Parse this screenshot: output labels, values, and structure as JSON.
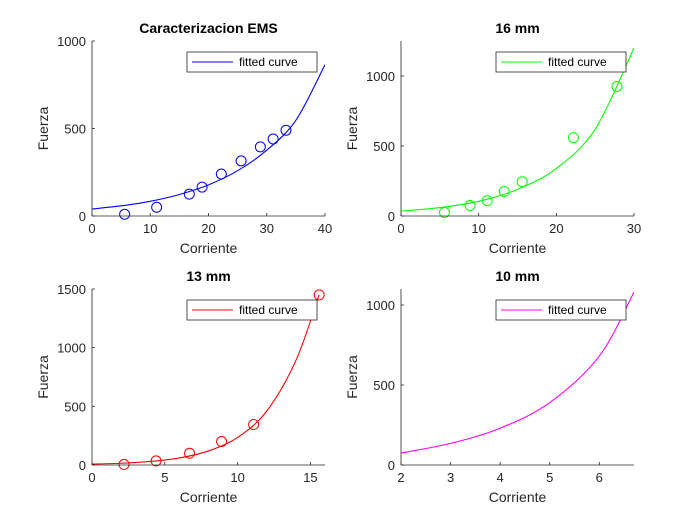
{
  "chart_data": [
    {
      "type": "scatter",
      "title": "Caracterizacion EMS",
      "xlabel": "Corriente",
      "ylabel": "Fuerza",
      "xlim": [
        0,
        40
      ],
      "ylim": [
        0,
        1000
      ],
      "xticks": [
        "0",
        "10",
        "20",
        "30",
        "40"
      ],
      "yticks": [
        "0",
        "500",
        "1000"
      ],
      "color": "#0000ff",
      "legend": {
        "label": "fitted curve",
        "placement": "top-right"
      },
      "points": {
        "x": [
          5.6,
          11.1,
          16.7,
          18.9,
          22.2,
          25.6,
          28.9,
          31.1,
          33.3
        ],
        "y": [
          10,
          50,
          125,
          165,
          240,
          315,
          395,
          440,
          490
        ]
      },
      "fit": {
        "x": [
          0,
          5,
          10,
          15,
          20,
          25,
          30,
          35,
          40
        ],
        "y": [
          40,
          58,
          84,
          123,
          178,
          259,
          376,
          547,
          865
        ]
      }
    },
    {
      "type": "scatter",
      "title": "16 mm",
      "xlabel": "Corriente",
      "ylabel": "Fuerza",
      "xlim": [
        0,
        30
      ],
      "ylim": [
        0,
        1250
      ],
      "xticks": [
        "0",
        "10",
        "20",
        "30"
      ],
      "yticks": [
        "0",
        "500",
        "1000"
      ],
      "color": "#00ff00",
      "legend": {
        "label": "fitted curve",
        "placement": "top-right"
      },
      "points": {
        "x": [
          5.6,
          8.9,
          11.1,
          13.3,
          15.6,
          22.2,
          27.8
        ],
        "y": [
          25,
          75,
          110,
          175,
          245,
          560,
          925
        ]
      },
      "fit": {
        "x": [
          0,
          5,
          10,
          15,
          20,
          25,
          30
        ],
        "y": [
          35,
          60,
          105,
          190,
          340,
          620,
          1200
        ]
      }
    },
    {
      "type": "scatter",
      "title": "13 mm",
      "xlabel": "Corriente",
      "ylabel": "Fuerza",
      "xlim": [
        0,
        16
      ],
      "ylim": [
        0,
        1500
      ],
      "xticks": [
        "0",
        "5",
        "10",
        "15"
      ],
      "yticks": [
        "0",
        "500",
        "1000",
        "1500"
      ],
      "color": "#ff0000",
      "legend": {
        "label": "fitted curve",
        "placement": "top-right"
      },
      "points": {
        "x": [
          2.2,
          4.4,
          6.7,
          8.9,
          11.1,
          15.6
        ],
        "y": [
          5,
          35,
          100,
          200,
          345,
          1450
        ]
      },
      "fit": {
        "x": [
          0,
          2,
          4,
          6,
          8,
          10,
          12,
          14,
          15.6
        ],
        "y": [
          8,
          15,
          30,
          60,
          120,
          235,
          460,
          890,
          1450
        ]
      }
    },
    {
      "type": "line",
      "title": "10 mm",
      "xlabel": "Corriente",
      "ylabel": "Fuerza",
      "xlim": [
        2,
        6.7
      ],
      "ylim": [
        0,
        1100
      ],
      "xticks": [
        "2",
        "3",
        "4",
        "5",
        "6"
      ],
      "yticks": [
        "0",
        "500",
        "1000"
      ],
      "color": "#ff00ff",
      "legend": {
        "label": "fitted curve",
        "placement": "top-right"
      },
      "points": {
        "x": [],
        "y": []
      },
      "fit": {
        "x": [
          2,
          3,
          4,
          5,
          6,
          6.7
        ],
        "y": [
          75,
          135,
          230,
          390,
          680,
          1080
        ]
      }
    }
  ]
}
